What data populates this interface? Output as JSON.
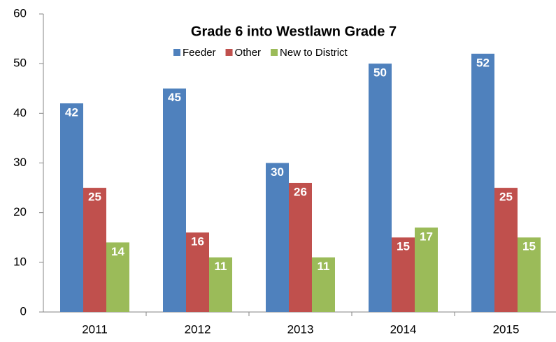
{
  "chart_data": {
    "type": "bar",
    "title": "Grade 6 into Westlawn Grade 7",
    "categories": [
      "2011",
      "2012",
      "2013",
      "2014",
      "2015"
    ],
    "series": [
      {
        "name": "Feeder",
        "color": "#4f81bd",
        "values": [
          42,
          45,
          30,
          50,
          52
        ]
      },
      {
        "name": "Other",
        "color": "#c0504d",
        "values": [
          25,
          16,
          26,
          15,
          25
        ]
      },
      {
        "name": "New to District",
        "color": "#9bbb59",
        "values": [
          14,
          11,
          11,
          17,
          15
        ]
      }
    ],
    "ylim": [
      0,
      60
    ],
    "yticks": [
      0,
      10,
      20,
      30,
      40,
      50,
      60
    ],
    "grid": false
  }
}
